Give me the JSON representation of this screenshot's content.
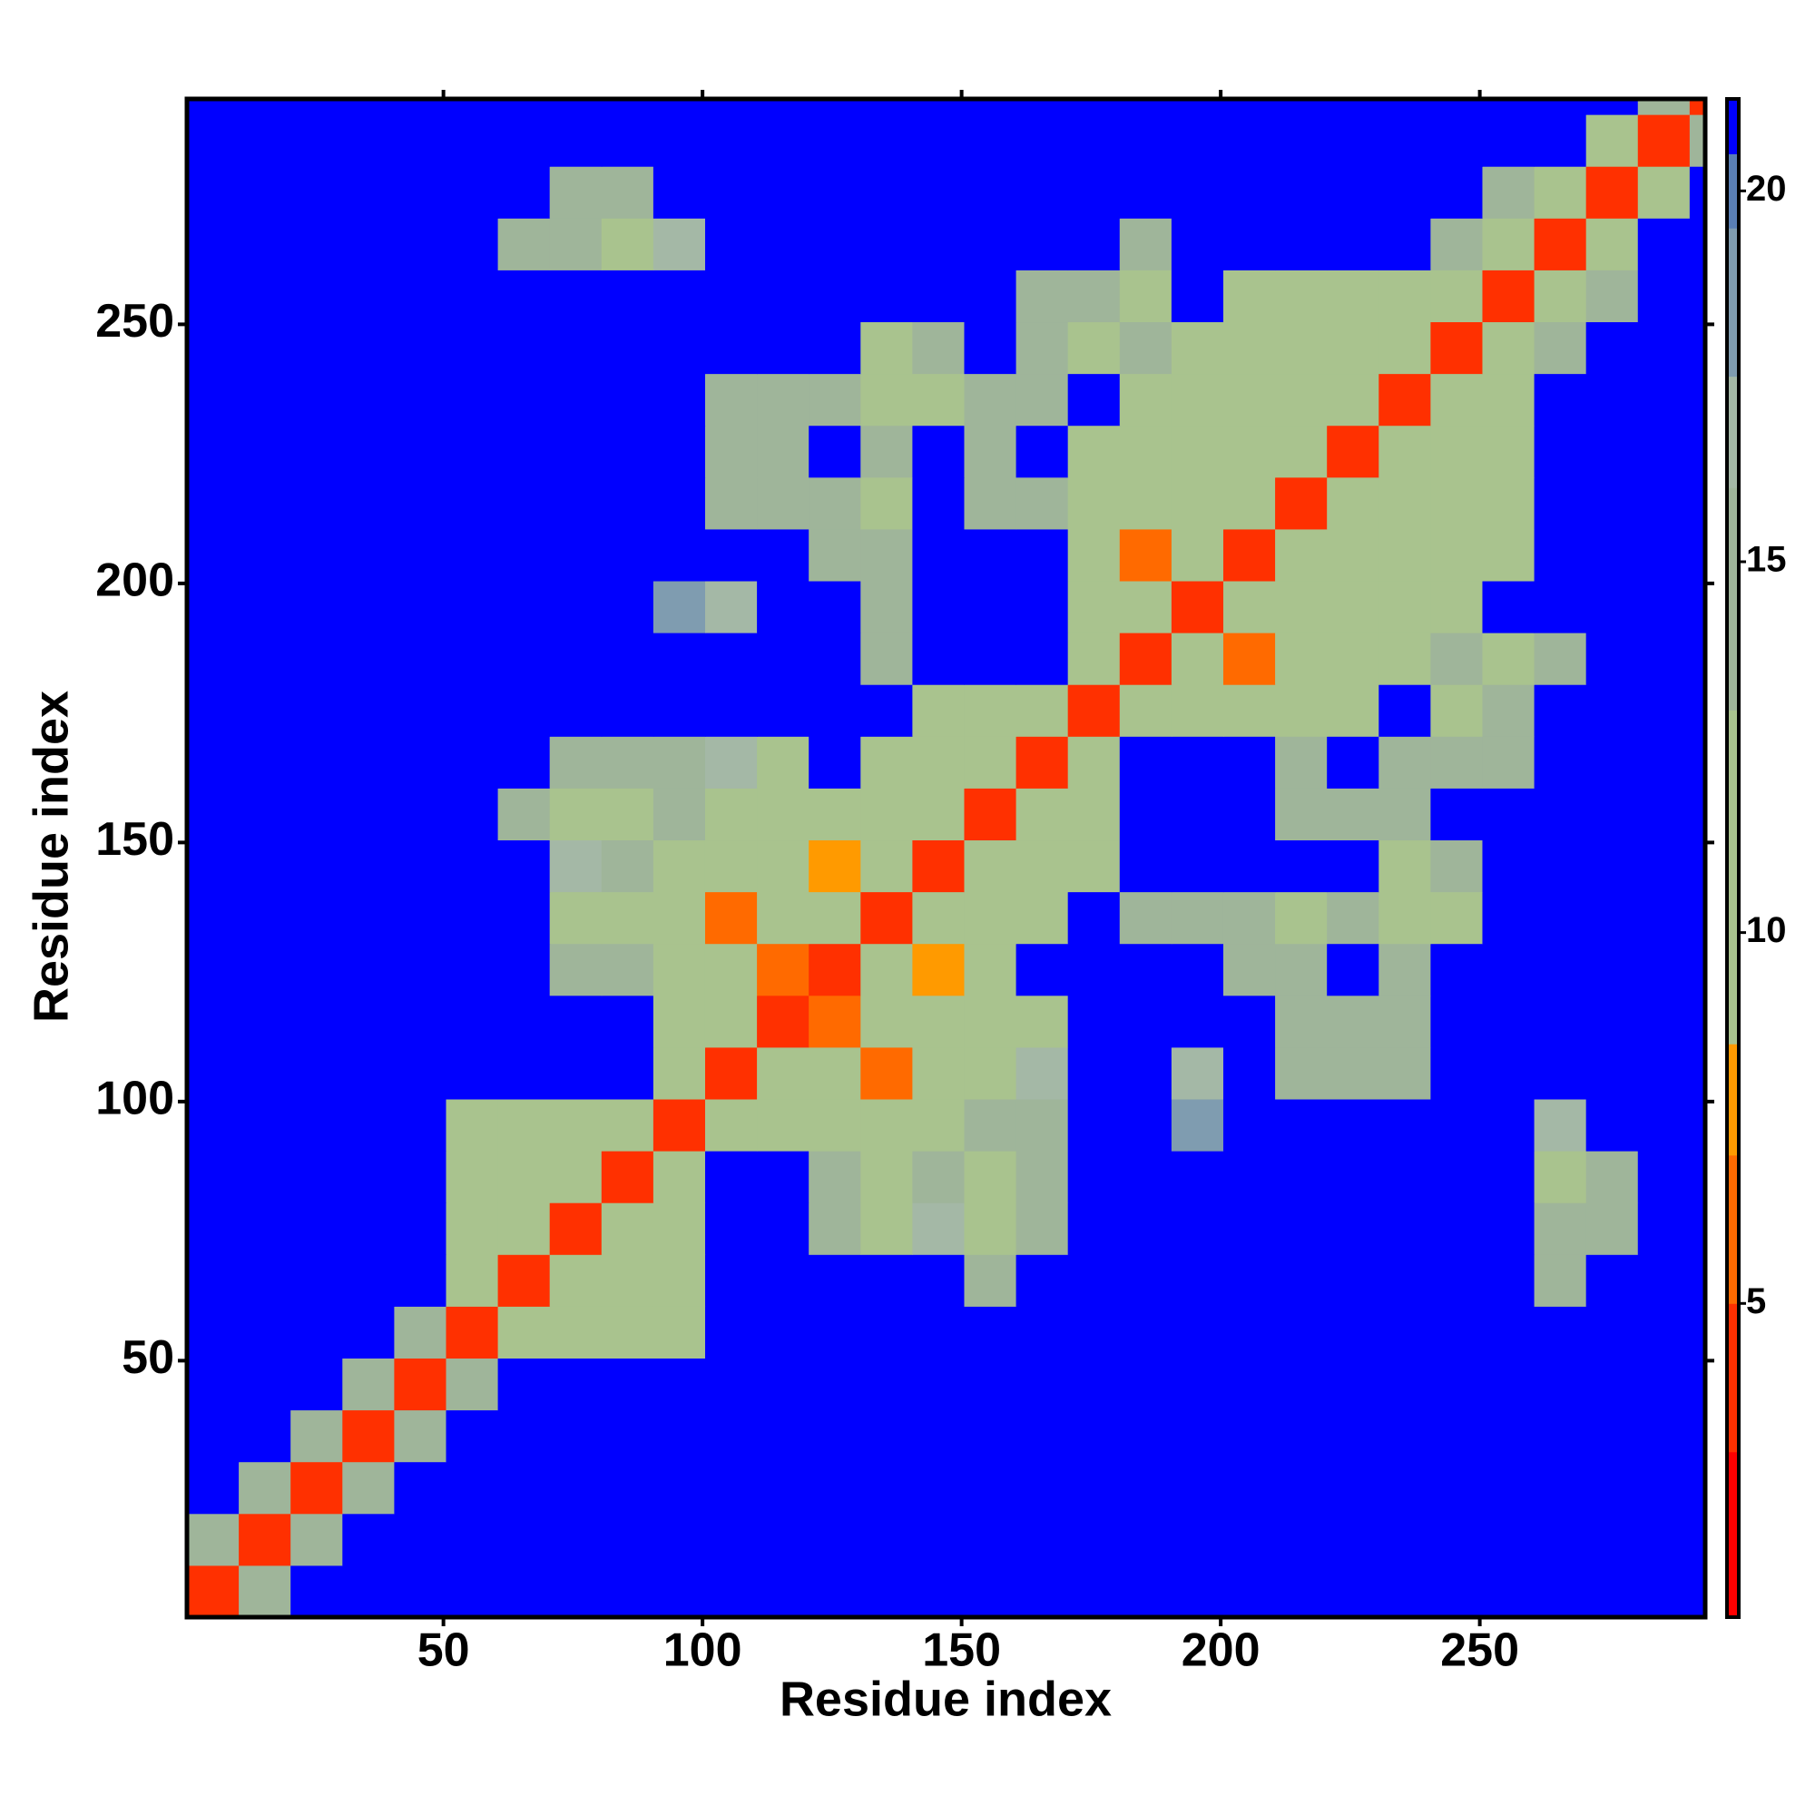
{
  "chart_data": {
    "type": "heatmap",
    "xlabel": "Residue index",
    "ylabel": "Residue index",
    "xlim": [
      0.5,
      293.5
    ],
    "ylim": [
      0.5,
      293.5
    ],
    "xticks": [
      50,
      100,
      150,
      200,
      250
    ],
    "yticks": [
      50,
      100,
      150,
      200,
      250
    ],
    "xbins": [
      0.5,
      10.5,
      20.5,
      30.5,
      40.5,
      50.5,
      60.5,
      70.5,
      80.5,
      90.5,
      100.5,
      110.5,
      120.5,
      130.5,
      140.5,
      150.5,
      160.5,
      170.5,
      180.5,
      190.5,
      200.5,
      210.5,
      220.5,
      230.5,
      240.5,
      250.5,
      260.5,
      270.5,
      280.5,
      290.5,
      293.5
    ],
    "ybins": [
      0.5,
      10.5,
      20.5,
      30.5,
      40.5,
      50.5,
      60.5,
      70.5,
      80.5,
      90.5,
      100.5,
      110.5,
      120.5,
      130.5,
      140.5,
      150.5,
      160.5,
      170.5,
      180.5,
      190.5,
      200.5,
      210.5,
      220.5,
      230.5,
      240.5,
      250.5,
      260.5,
      270.5,
      280.5,
      290.5,
      293.5
    ],
    "colorbar": {
      "lim": [
        0.77,
        21.24
      ],
      "ticks": [
        5,
        10,
        15,
        20
      ]
    },
    "colormap": [
      {
        "upto": 3,
        "color": "#ff0000"
      },
      {
        "upto": 5,
        "color": "#ff3000"
      },
      {
        "upto": 7,
        "color": "#ff6a00"
      },
      {
        "upto": 8.5,
        "color": "#ff9a00"
      },
      {
        "upto": 13,
        "color": "#a9c38e"
      },
      {
        "upto": 16,
        "color": "#9fb59a"
      },
      {
        "upto": 17.5,
        "color": "#a4b8a6"
      },
      {
        "upto": 19.5,
        "color": "#7f9cb0"
      },
      {
        "upto": 20.5,
        "color": "#5a7fb5"
      },
      {
        "upto": 21.24,
        "color": "#0000ff"
      }
    ],
    "z": [
      [
        4,
        15,
        21,
        21,
        21,
        21,
        21,
        21,
        21,
        21,
        21,
        21,
        21,
        21,
        21,
        21,
        21,
        21,
        21,
        21,
        21,
        21,
        21,
        21,
        21,
        21,
        21,
        21,
        21,
        21
      ],
      [
        15,
        4,
        16,
        21,
        21,
        21,
        21,
        21,
        21,
        21,
        21,
        21,
        21,
        21,
        21,
        21,
        21,
        21,
        21,
        21,
        21,
        21,
        21,
        21,
        21,
        21,
        21,
        21,
        21,
        21
      ],
      [
        21,
        16,
        4,
        16,
        21,
        21,
        21,
        21,
        21,
        21,
        21,
        21,
        21,
        21,
        21,
        21,
        21,
        21,
        21,
        21,
        21,
        21,
        21,
        21,
        21,
        21,
        21,
        21,
        21,
        21
      ],
      [
        21,
        21,
        16,
        4,
        16,
        21,
        21,
        21,
        21,
        21,
        21,
        21,
        21,
        21,
        21,
        21,
        21,
        21,
        21,
        21,
        21,
        21,
        21,
        21,
        21,
        21,
        21,
        21,
        21,
        21
      ],
      [
        21,
        21,
        21,
        16,
        4,
        14,
        21,
        21,
        21,
        21,
        21,
        21,
        21,
        21,
        21,
        21,
        21,
        21,
        21,
        21,
        21,
        21,
        21,
        21,
        21,
        21,
        21,
        21,
        21,
        21
      ],
      [
        21,
        21,
        21,
        21,
        14,
        4,
        12,
        12,
        12,
        12,
        21,
        21,
        21,
        21,
        21,
        21,
        21,
        21,
        21,
        21,
        21,
        21,
        21,
        21,
        21,
        21,
        21,
        21,
        21,
        21
      ],
      [
        21,
        21,
        21,
        21,
        21,
        12,
        4,
        12,
        12,
        12,
        21,
        21,
        21,
        21,
        21,
        16,
        21,
        21,
        21,
        21,
        21,
        21,
        21,
        21,
        21,
        21,
        16,
        21,
        21,
        21
      ],
      [
        21,
        21,
        21,
        21,
        21,
        12,
        12,
        4,
        12,
        12,
        21,
        21,
        15,
        13,
        17,
        13,
        14,
        21,
        21,
        21,
        21,
        21,
        21,
        21,
        21,
        21,
        15,
        16,
        21,
        21
      ],
      [
        21,
        21,
        21,
        21,
        21,
        12,
        12,
        12,
        4,
        12,
        21,
        21,
        14,
        12,
        14,
        12,
        14,
        21,
        21,
        21,
        21,
        21,
        21,
        21,
        21,
        21,
        13,
        15,
        21,
        21
      ],
      [
        21,
        21,
        21,
        21,
        21,
        12,
        12,
        12,
        12,
        4,
        11,
        13,
        13,
        12,
        13,
        14,
        15,
        21,
        21,
        18,
        21,
        21,
        21,
        21,
        21,
        21,
        17,
        21,
        21,
        21
      ],
      [
        21,
        21,
        21,
        21,
        21,
        21,
        21,
        21,
        21,
        11,
        4,
        12,
        10,
        7,
        12,
        13,
        17,
        21,
        21,
        17,
        21,
        15,
        16,
        14,
        21,
        21,
        21,
        21,
        21,
        21
      ],
      [
        21,
        21,
        21,
        21,
        21,
        21,
        21,
        21,
        21,
        13,
        12,
        4,
        7,
        12,
        10,
        13,
        13,
        21,
        21,
        21,
        21,
        15,
        15,
        14,
        21,
        21,
        21,
        21,
        21,
        21
      ],
      [
        21,
        21,
        21,
        21,
        21,
        21,
        21,
        15,
        14,
        13,
        10,
        7,
        4,
        11,
        8,
        12,
        21,
        21,
        21,
        21,
        16,
        14,
        21,
        14,
        21,
        21,
        21,
        21,
        21,
        21
      ],
      [
        21,
        21,
        21,
        21,
        21,
        21,
        21,
        13,
        12,
        12,
        7,
        12,
        11,
        4,
        9,
        12,
        12,
        21,
        16,
        15,
        14,
        12,
        15,
        13,
        13,
        21,
        21,
        21,
        21,
        21
      ],
      [
        21,
        21,
        21,
        21,
        21,
        21,
        21,
        17,
        14,
        13,
        12,
        10,
        8,
        9,
        4,
        11,
        12,
        12,
        21,
        21,
        21,
        21,
        21,
        13,
        14,
        21,
        21,
        21,
        21,
        21
      ],
      [
        21,
        21,
        21,
        21,
        21,
        21,
        16,
        13,
        12,
        14,
        13,
        13,
        12,
        12,
        11,
        4,
        11,
        13,
        21,
        21,
        21,
        15,
        16,
        14,
        21,
        21,
        21,
        21,
        21,
        21
      ],
      [
        21,
        21,
        21,
        21,
        21,
        21,
        21,
        14,
        14,
        15,
        17,
        13,
        21,
        12,
        12,
        11,
        4,
        12,
        21,
        21,
        21,
        14,
        21,
        15,
        14,
        15,
        21,
        21,
        21,
        21
      ],
      [
        21,
        21,
        21,
        21,
        21,
        21,
        21,
        21,
        21,
        21,
        21,
        21,
        21,
        21,
        12,
        13,
        12,
        4,
        11,
        11,
        10,
        13,
        13,
        21,
        13,
        14,
        21,
        21,
        21,
        21
      ],
      [
        21,
        21,
        21,
        21,
        21,
        21,
        21,
        21,
        21,
        21,
        21,
        21,
        21,
        16,
        21,
        21,
        21,
        11,
        4,
        11,
        7,
        13,
        9,
        13,
        14,
        13,
        16,
        21,
        21,
        21
      ],
      [
        21,
        21,
        21,
        21,
        21,
        21,
        21,
        21,
        21,
        18,
        17,
        21,
        21,
        15,
        21,
        21,
        21,
        11,
        11,
        4,
        11,
        11,
        13,
        9,
        13,
        21,
        21,
        21,
        21,
        21
      ],
      [
        21,
        21,
        21,
        21,
        21,
        21,
        21,
        21,
        21,
        21,
        21,
        21,
        16,
        14,
        21,
        21,
        21,
        10,
        7,
        11,
        4,
        11,
        11,
        13,
        13,
        13,
        21,
        21,
        21,
        21
      ],
      [
        21,
        21,
        21,
        21,
        21,
        21,
        21,
        21,
        21,
        21,
        15,
        15,
        14,
        12,
        21,
        15,
        14,
        13,
        13,
        11,
        11,
        4,
        11,
        11,
        13,
        13,
        21,
        21,
        21,
        21
      ],
      [
        21,
        21,
        21,
        21,
        21,
        21,
        21,
        21,
        21,
        21,
        16,
        15,
        21,
        15,
        21,
        16,
        21,
        13,
        9,
        13,
        11,
        11,
        4,
        11,
        11,
        13,
        21,
        21,
        21,
        21
      ],
      [
        21,
        21,
        21,
        21,
        21,
        21,
        21,
        21,
        21,
        21,
        14,
        14,
        14,
        13,
        13,
        14,
        15,
        21,
        13,
        9,
        13,
        11,
        11,
        4,
        11,
        11,
        21,
        21,
        21,
        21
      ],
      [
        21,
        21,
        21,
        21,
        21,
        21,
        21,
        21,
        21,
        21,
        21,
        21,
        21,
        13,
        14,
        21,
        14,
        13,
        14,
        13,
        13,
        13,
        11,
        11,
        4,
        11,
        15,
        21,
        21,
        21
      ],
      [
        21,
        21,
        21,
        21,
        21,
        21,
        21,
        21,
        21,
        21,
        21,
        21,
        21,
        21,
        21,
        21,
        15,
        14,
        13,
        21,
        13,
        13,
        13,
        11,
        11,
        4,
        12,
        16,
        21,
        21
      ],
      [
        21,
        21,
        21,
        21,
        21,
        21,
        16,
        15,
        13,
        17,
        21,
        21,
        21,
        21,
        21,
        21,
        21,
        21,
        16,
        21,
        21,
        21,
        21,
        21,
        15,
        12,
        4,
        12,
        21,
        21
      ],
      [
        21,
        21,
        21,
        21,
        21,
        21,
        21,
        16,
        15,
        21,
        21,
        21,
        21,
        21,
        21,
        21,
        21,
        21,
        21,
        21,
        21,
        21,
        21,
        21,
        21,
        16,
        12,
        4,
        13,
        21
      ],
      [
        21,
        21,
        21,
        21,
        21,
        21,
        21,
        21,
        21,
        21,
        21,
        21,
        21,
        21,
        21,
        21,
        21,
        21,
        21,
        21,
        21,
        21,
        21,
        21,
        21,
        21,
        21,
        13,
        4,
        14
      ],
      [
        21,
        21,
        21,
        21,
        21,
        21,
        21,
        21,
        21,
        21,
        21,
        21,
        21,
        21,
        21,
        21,
        21,
        21,
        21,
        21,
        21,
        21,
        21,
        21,
        21,
        21,
        21,
        21,
        14,
        4
      ]
    ]
  }
}
